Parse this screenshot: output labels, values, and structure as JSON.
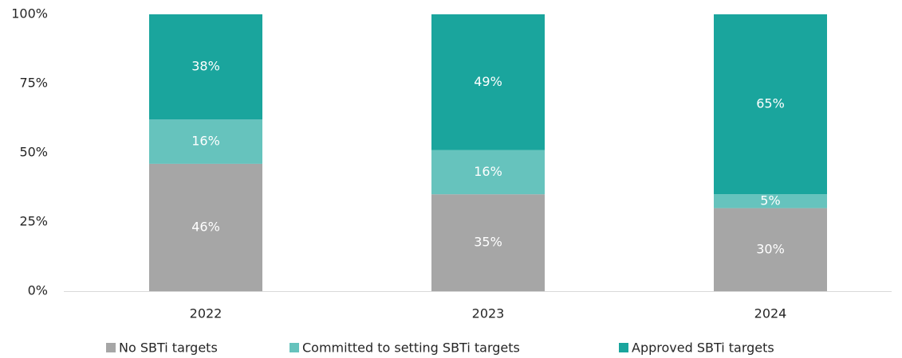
{
  "chart_data": {
    "type": "stacked-bar",
    "categories": [
      "2022",
      "2023",
      "2024"
    ],
    "series": [
      {
        "name": "No SBTi targets",
        "color": "#a6a6a6",
        "values": [
          46,
          35,
          30
        ],
        "value_labels": [
          "46%",
          "35%",
          "30%"
        ]
      },
      {
        "name": "Committed to setting SBTi targets",
        "color": "#66c3bd",
        "values": [
          16,
          16,
          5
        ],
        "value_labels": [
          "16%",
          "16%",
          "5%"
        ]
      },
      {
        "name": "Approved SBTi targets",
        "color": "#1aa59d",
        "values": [
          38,
          49,
          65
        ],
        "value_labels": [
          "38%",
          "49%",
          "65%"
        ]
      }
    ],
    "ylim": [
      0,
      100
    ],
    "yticks": [
      {
        "value": 0,
        "label": "0%"
      },
      {
        "value": 25,
        "label": "25%"
      },
      {
        "value": 50,
        "label": "50%"
      },
      {
        "value": 75,
        "label": "75%"
      },
      {
        "value": 100,
        "label": "100%"
      }
    ],
    "legend": "bottom"
  }
}
